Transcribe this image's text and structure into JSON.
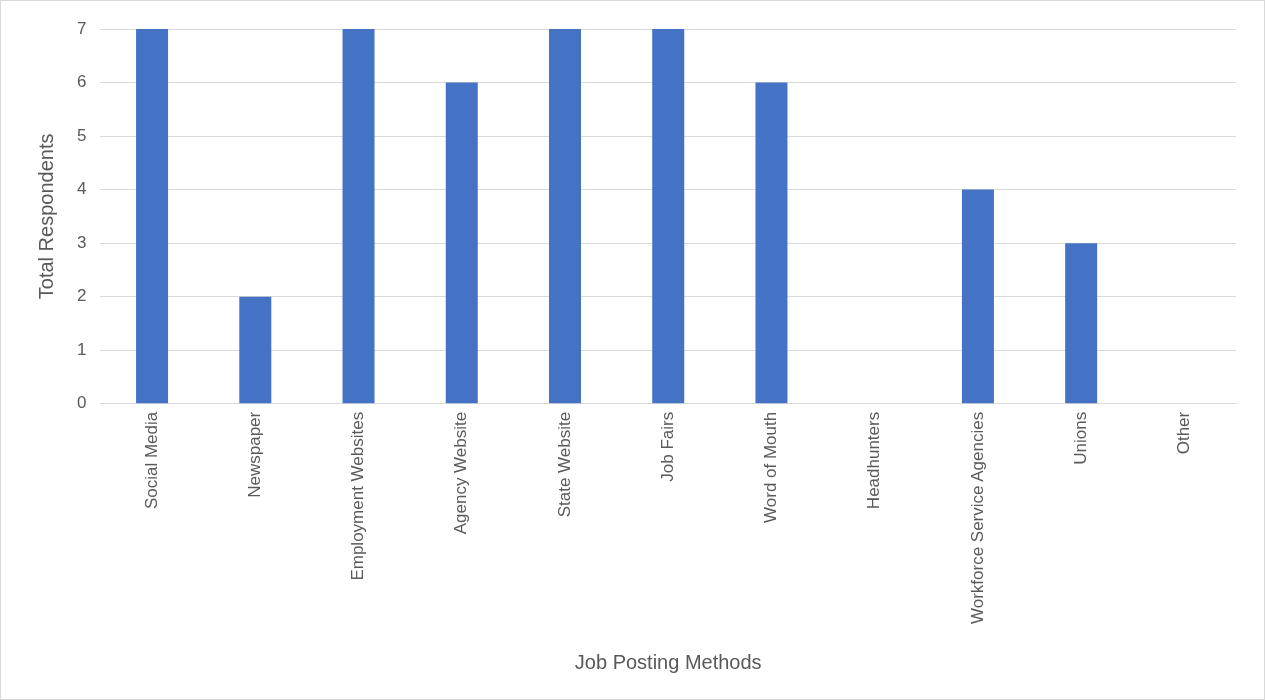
{
  "chart_data": {
    "type": "bar",
    "xlabel": "Job Posting Methods",
    "ylabel": "Total Respondents",
    "categories": [
      "Social Media",
      "Newspaper",
      "Employment Websites",
      "Agency Website",
      "State Website",
      "Job Fairs",
      "Word of Mouth",
      "Headhunters",
      "Workforce Service Agencies",
      "Unions",
      "Other"
    ],
    "values": [
      7,
      2,
      7,
      6,
      7,
      7,
      6,
      0,
      4,
      3,
      0
    ],
    "color": "#4472c4",
    "ylim": [
      0,
      7
    ],
    "yticks": [
      0,
      1,
      2,
      3,
      4,
      5,
      6,
      7
    ],
    "grid": "y",
    "legend": false
  }
}
